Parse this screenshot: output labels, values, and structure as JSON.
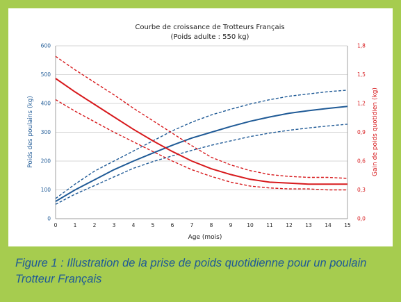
{
  "figure": {
    "caption_line1": "Figure 1 : Illustration de la prise de poids quotidienne pour un poulain",
    "caption_line2": "Trotteur Français"
  },
  "colors": {
    "background": "#a6cc4f",
    "blue": "#1f5a96",
    "red": "#d7191c",
    "caption": "#1f5a96"
  },
  "chart_data": {
    "type": "line",
    "title": "Courbe de croissance de Trotteurs Français",
    "subtitle": "(Poids adulte : 550 kg)",
    "xlabel": "Age (mois)",
    "ylabel_left": "Poids des poulains (kg)",
    "ylabel_right": "Gain de poids quotidien (kg)",
    "xlim": [
      0,
      15
    ],
    "ylim_left": [
      0,
      600
    ],
    "ylim_right": [
      0,
      1.8
    ],
    "x_ticks": [
      "0",
      "1",
      "2",
      "3",
      "4",
      "5",
      "6",
      "7",
      "8",
      "9",
      "10",
      "11",
      "12",
      "13",
      "14",
      "15"
    ],
    "y_left_ticks": [
      "0",
      "100",
      "200",
      "300",
      "400",
      "500",
      "600"
    ],
    "y_right_ticks": [
      "0,0",
      "0,3",
      "0,6",
      "0,9",
      "1,2",
      "1,5",
      "1,8"
    ],
    "grid": true,
    "x": [
      0,
      1,
      2,
      3,
      4,
      5,
      6,
      7,
      8,
      9,
      10,
      11,
      12,
      13,
      14,
      15
    ],
    "series": [
      {
        "axis": "left",
        "color": "#1f5a96",
        "dashed": false,
        "values": [
          60,
          100,
          135,
          170,
          200,
          228,
          255,
          280,
          300,
          320,
          338,
          353,
          366,
          375,
          383,
          390
        ]
      },
      {
        "axis": "left",
        "color": "#1f5a96",
        "dashed": true,
        "values": [
          70,
          120,
          165,
          200,
          235,
          270,
          305,
          335,
          360,
          380,
          398,
          413,
          425,
          433,
          441,
          446
        ]
      },
      {
        "axis": "left",
        "color": "#1f5a96",
        "dashed": true,
        "values": [
          50,
          85,
          115,
          145,
          175,
          198,
          218,
          237,
          255,
          270,
          285,
          297,
          307,
          315,
          322,
          328
        ]
      },
      {
        "axis": "right",
        "color": "#d7191c",
        "dashed": false,
        "values": [
          1.46,
          1.32,
          1.19,
          1.06,
          0.93,
          0.81,
          0.7,
          0.6,
          0.52,
          0.46,
          0.41,
          0.38,
          0.37,
          0.36,
          0.36,
          0.36
        ]
      },
      {
        "axis": "right",
        "color": "#d7191c",
        "dashed": true,
        "values": [
          1.69,
          1.55,
          1.42,
          1.29,
          1.15,
          1.02,
          0.89,
          0.76,
          0.64,
          0.56,
          0.5,
          0.46,
          0.44,
          0.43,
          0.43,
          0.42
        ]
      },
      {
        "axis": "right",
        "color": "#d7191c",
        "dashed": true,
        "values": [
          1.24,
          1.12,
          1.01,
          0.9,
          0.8,
          0.7,
          0.6,
          0.51,
          0.44,
          0.38,
          0.34,
          0.32,
          0.31,
          0.31,
          0.3,
          0.3
        ]
      }
    ]
  }
}
